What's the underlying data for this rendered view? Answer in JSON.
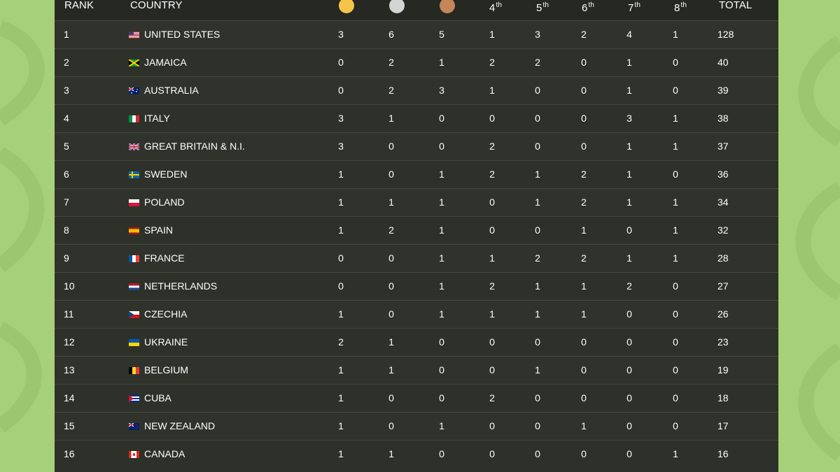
{
  "header": {
    "rank": "RANK",
    "country": "COUNTRY",
    "gold_icon": "gold-medal-icon",
    "silver_icon": "silver-medal-icon",
    "bronze_icon": "bronze-medal-icon",
    "p4": "4",
    "p5": "5",
    "p6": "6",
    "p7": "7",
    "p8": "8",
    "suffix": "th",
    "total": "TOTAL"
  },
  "colors": {
    "gold": "#f4c54a",
    "silver": "#d4d4d4",
    "bronze": "#c5865a"
  },
  "rows": [
    {
      "rank": "1",
      "country": "UNITED STATES",
      "flag": "us",
      "gold": "3",
      "silver": "6",
      "bronze": "5",
      "p4": "1",
      "p5": "3",
      "p6": "2",
      "p7": "4",
      "p8": "1",
      "total": "128"
    },
    {
      "rank": "2",
      "country": "JAMAICA",
      "flag": "jm",
      "gold": "0",
      "silver": "2",
      "bronze": "1",
      "p4": "2",
      "p5": "2",
      "p6": "0",
      "p7": "1",
      "p8": "0",
      "total": "40"
    },
    {
      "rank": "3",
      "country": "AUSTRALIA",
      "flag": "au",
      "gold": "0",
      "silver": "2",
      "bronze": "3",
      "p4": "1",
      "p5": "0",
      "p6": "0",
      "p7": "1",
      "p8": "0",
      "total": "39"
    },
    {
      "rank": "4",
      "country": "ITALY",
      "flag": "it",
      "gold": "3",
      "silver": "1",
      "bronze": "0",
      "p4": "0",
      "p5": "0",
      "p6": "0",
      "p7": "3",
      "p8": "1",
      "total": "38"
    },
    {
      "rank": "5",
      "country": "GREAT BRITAIN & N.I.",
      "flag": "gb",
      "gold": "3",
      "silver": "0",
      "bronze": "0",
      "p4": "2",
      "p5": "0",
      "p6": "0",
      "p7": "1",
      "p8": "1",
      "total": "37"
    },
    {
      "rank": "6",
      "country": "SWEDEN",
      "flag": "se",
      "gold": "1",
      "silver": "0",
      "bronze": "1",
      "p4": "2",
      "p5": "1",
      "p6": "2",
      "p7": "1",
      "p8": "0",
      "total": "36"
    },
    {
      "rank": "7",
      "country": "POLAND",
      "flag": "pl",
      "gold": "1",
      "silver": "1",
      "bronze": "1",
      "p4": "0",
      "p5": "1",
      "p6": "2",
      "p7": "1",
      "p8": "1",
      "total": "34"
    },
    {
      "rank": "8",
      "country": "SPAIN",
      "flag": "es",
      "gold": "1",
      "silver": "2",
      "bronze": "1",
      "p4": "0",
      "p5": "0",
      "p6": "1",
      "p7": "0",
      "p8": "1",
      "total": "32"
    },
    {
      "rank": "9",
      "country": "FRANCE",
      "flag": "fr",
      "gold": "0",
      "silver": "0",
      "bronze": "1",
      "p4": "1",
      "p5": "2",
      "p6": "2",
      "p7": "1",
      "p8": "1",
      "total": "28"
    },
    {
      "rank": "10",
      "country": "NETHERLANDS",
      "flag": "nl",
      "gold": "0",
      "silver": "0",
      "bronze": "1",
      "p4": "2",
      "p5": "1",
      "p6": "1",
      "p7": "2",
      "p8": "0",
      "total": "27"
    },
    {
      "rank": "11",
      "country": "CZECHIA",
      "flag": "cz",
      "gold": "1",
      "silver": "0",
      "bronze": "1",
      "p4": "1",
      "p5": "1",
      "p6": "1",
      "p7": "0",
      "p8": "0",
      "total": "26"
    },
    {
      "rank": "12",
      "country": "UKRAINE",
      "flag": "ua",
      "gold": "2",
      "silver": "1",
      "bronze": "0",
      "p4": "0",
      "p5": "0",
      "p6": "0",
      "p7": "0",
      "p8": "0",
      "total": "23"
    },
    {
      "rank": "13",
      "country": "BELGIUM",
      "flag": "be",
      "gold": "1",
      "silver": "1",
      "bronze": "0",
      "p4": "0",
      "p5": "1",
      "p6": "0",
      "p7": "0",
      "p8": "0",
      "total": "19"
    },
    {
      "rank": "14",
      "country": "CUBA",
      "flag": "cu",
      "gold": "1",
      "silver": "0",
      "bronze": "0",
      "p4": "2",
      "p5": "0",
      "p6": "0",
      "p7": "0",
      "p8": "0",
      "total": "18"
    },
    {
      "rank": "15",
      "country": "NEW ZEALAND",
      "flag": "nz",
      "gold": "1",
      "silver": "0",
      "bronze": "1",
      "p4": "0",
      "p5": "0",
      "p6": "1",
      "p7": "0",
      "p8": "0",
      "total": "17"
    },
    {
      "rank": "16",
      "country": "CANADA",
      "flag": "ca",
      "gold": "1",
      "silver": "1",
      "bronze": "0",
      "p4": "0",
      "p5": "0",
      "p6": "0",
      "p7": "0",
      "p8": "1",
      "total": "16"
    }
  ]
}
